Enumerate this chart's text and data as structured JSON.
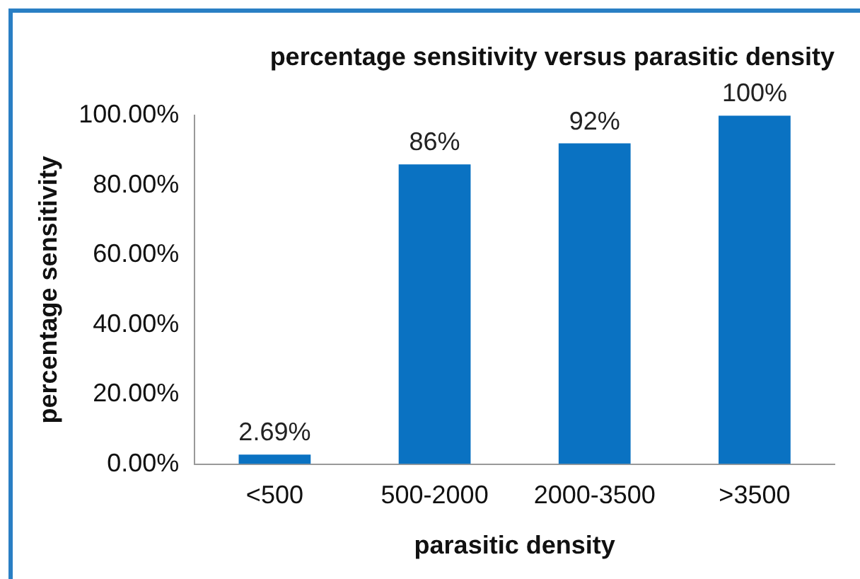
{
  "chart_data": {
    "type": "bar",
    "title": "percentage sensitivity versus parasitic density",
    "xlabel": "parasitic density",
    "ylabel": "percentage sensitivity",
    "categories": [
      "<500",
      "500-2000",
      "2000-3500",
      ">3500"
    ],
    "values": [
      2.69,
      86,
      92,
      100
    ],
    "value_labels": [
      "2.69%",
      "86%",
      "92%",
      "100%"
    ],
    "color": "#0a72c2",
    "ylim": [
      0,
      100
    ],
    "yticks": [
      {
        "value": 0,
        "label": "0.00%"
      },
      {
        "value": 20,
        "label": "20.00%"
      },
      {
        "value": 40,
        "label": "40.00%"
      },
      {
        "value": 60,
        "label": "60.00%"
      },
      {
        "value": 80,
        "label": "80.00%"
      },
      {
        "value": 100,
        "label": "100.00%"
      }
    ],
    "grid": false,
    "legend": false
  }
}
